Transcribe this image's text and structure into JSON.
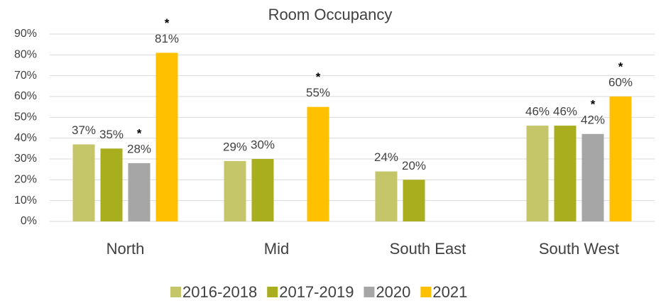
{
  "chart_data": {
    "type": "bar",
    "title": "Room Occupancy",
    "categories": [
      "North",
      "Mid",
      "South East",
      "South West"
    ],
    "series": [
      {
        "name": "2016-2018",
        "color": "#c5c56a",
        "values": [
          37,
          29,
          24,
          46
        ],
        "value_labels": [
          "37%",
          "29%",
          "24%",
          "46%"
        ],
        "notes": [
          null,
          null,
          null,
          null
        ]
      },
      {
        "name": "2017-2019",
        "color": "#a9ae1e",
        "values": [
          35,
          30,
          20,
          46
        ],
        "value_labels": [
          "35%",
          "30%",
          "20%",
          "46%"
        ],
        "notes": [
          null,
          null,
          null,
          null
        ]
      },
      {
        "name": "2020",
        "color": "#a6a6a6",
        "values": [
          28,
          null,
          null,
          42
        ],
        "value_labels": [
          "28%",
          null,
          null,
          "42%"
        ],
        "notes": [
          "*",
          null,
          null,
          "*"
        ]
      },
      {
        "name": "2021",
        "color": "#ffc000",
        "values": [
          81,
          55,
          null,
          60
        ],
        "value_labels": [
          "81%",
          "55%",
          null,
          "60%"
        ],
        "notes": [
          "*",
          "*",
          null,
          "*"
        ]
      }
    ],
    "ylim": [
      0,
      90
    ],
    "yticks": [
      {
        "value": 0,
        "label": "0%"
      },
      {
        "value": 10,
        "label": "10%"
      },
      {
        "value": 20,
        "label": "20%"
      },
      {
        "value": 30,
        "label": "30%"
      },
      {
        "value": 40,
        "label": "40%"
      },
      {
        "value": 50,
        "label": "50%"
      },
      {
        "value": 60,
        "label": "60%"
      },
      {
        "value": 70,
        "label": "70%"
      },
      {
        "value": 80,
        "label": "80%"
      },
      {
        "value": 90,
        "label": "90%"
      }
    ],
    "grid": true,
    "legend": "bottom"
  }
}
